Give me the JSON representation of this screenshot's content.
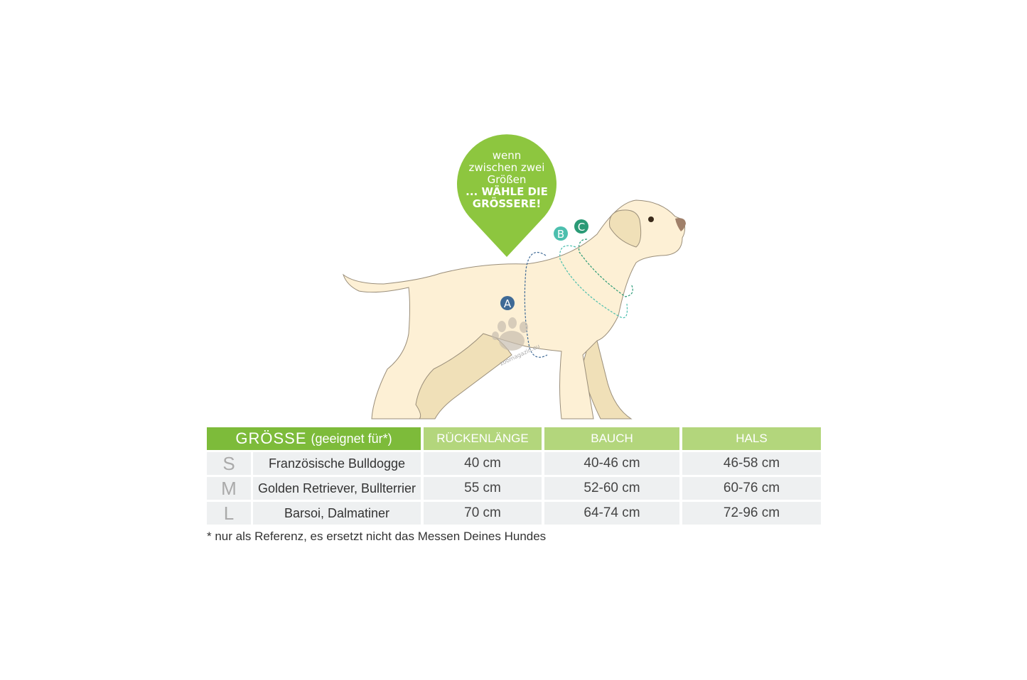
{
  "bubble": {
    "line1": "wenn",
    "line2": "zwischen zwei",
    "line3": "Größen",
    "line4": "... WÄHLE DIE",
    "line5": "GRÖSSERE!",
    "color": "#8dc63f"
  },
  "markers": {
    "a": {
      "label": "A",
      "color": "#3f6a96"
    },
    "b": {
      "label": "B",
      "color": "#4cbfae"
    },
    "c": {
      "label": "C",
      "color": "#2a9a76"
    }
  },
  "watermark": "zoomagazin.eu",
  "table": {
    "header": {
      "size": "GRÖSSE",
      "size_note": "(geeignet für*)",
      "back": "RÜCKENLÄNGE",
      "belly": "BAUCH",
      "neck": "HALS"
    },
    "rows": [
      {
        "size": "S",
        "breed": "Französische Bulldogge",
        "back": "40 cm",
        "belly": "40-46 cm",
        "neck": "46-58 cm"
      },
      {
        "size": "M",
        "breed": "Golden Retriever, Bullterrier",
        "back": "55 cm",
        "belly": "52-60 cm",
        "neck": "60-76 cm"
      },
      {
        "size": "L",
        "breed": "Barsoi, Dalmatiner",
        "back": "70 cm",
        "belly": "64-74 cm",
        "neck": "72-96 cm"
      }
    ],
    "footnote": "* nur als Referenz, es ersetzt nicht das Messen Deines Hundes"
  }
}
